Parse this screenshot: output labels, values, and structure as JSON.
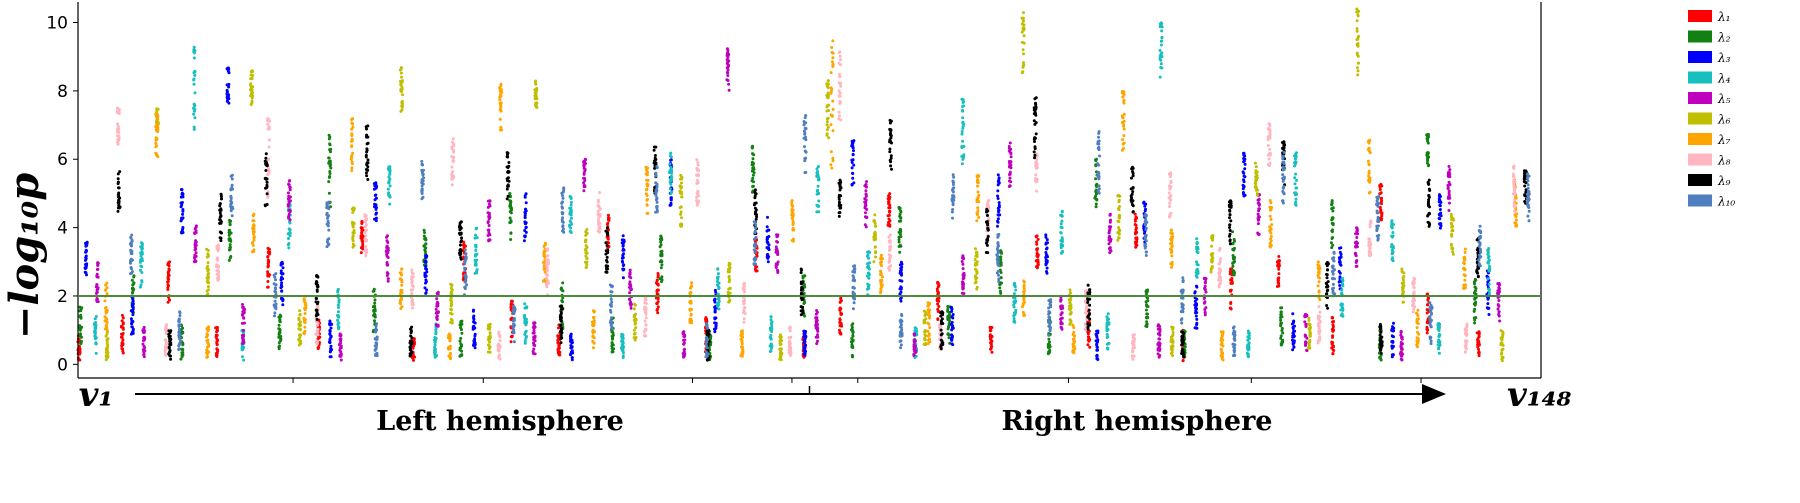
{
  "chart_data": {
    "type": "scatter",
    "ylabel": "−log₁₀p",
    "ylim": [
      -0.4,
      10.6
    ],
    "yticks": [
      "0",
      "2",
      "4",
      "6",
      "8",
      "10"
    ],
    "threshold": 2,
    "threshold_color": "#4c8a3c",
    "grid": false,
    "legend_position": "top-right",
    "x_start_label": "v₁",
    "x_end_label": "v₁₄₈",
    "region_labels": [
      "Left hemisphere",
      "Right hemisphere"
    ],
    "region_divider_index": 74,
    "n_features": 148,
    "series": [
      {
        "name": "λ₁",
        "color": "#ff0000",
        "ranges": [
          [
            0.1,
            0.9
          ],
          [
            0.3,
            1.5
          ],
          [
            1.8,
            3.0
          ],
          [
            0.2,
            1.1
          ],
          [
            2.2,
            3.4
          ],
          [
            0.4,
            1.3
          ],
          [
            3.0,
            4.2
          ],
          [
            0.1,
            0.8
          ],
          [
            2.4,
            3.6
          ],
          [
            0.6,
            1.9
          ],
          [
            0.2,
            1.2
          ],
          [
            3.2,
            4.4
          ],
          [
            1.5,
            2.7
          ],
          [
            0.3,
            1.4
          ],
          [
            2.6,
            3.7
          ],
          [
            0.2,
            0.9
          ],
          [
            0.8,
            2.0
          ],
          [
            4.0,
            5.0
          ],
          [
            1.2,
            2.4
          ],
          [
            0.2,
            1.1
          ],
          [
            2.8,
            3.8
          ],
          [
            0.5,
            1.6
          ],
          [
            3.4,
            4.5
          ],
          [
            0.1,
            1.0
          ],
          [
            1.6,
            2.8
          ],
          [
            2.2,
            3.2
          ],
          [
            0.3,
            1.4
          ],
          [
            4.2,
            5.3
          ],
          [
            0.9,
            2.1
          ],
          [
            0.2,
            1.0
          ]
        ]
      },
      {
        "name": "λ₂",
        "color": "#138013",
        "ranges": [
          [
            0.6,
            1.7
          ],
          [
            1.5,
            2.8
          ],
          [
            0.1,
            1.2
          ],
          [
            3.0,
            4.3
          ],
          [
            0.4,
            1.5
          ],
          [
            4.5,
            6.8
          ],
          [
            0.8,
            2.2
          ],
          [
            2.8,
            4.0
          ],
          [
            0.2,
            1.3
          ],
          [
            3.6,
            5.0
          ],
          [
            0.9,
            2.4
          ],
          [
            0.3,
            1.4
          ],
          [
            2.4,
            3.8
          ],
          [
            0.1,
            1.0
          ],
          [
            5.0,
            6.4
          ],
          [
            1.4,
            2.6
          ],
          [
            0.2,
            1.2
          ],
          [
            3.2,
            4.6
          ],
          [
            0.6,
            1.8
          ],
          [
            2.0,
            3.4
          ],
          [
            0.3,
            1.3
          ],
          [
            4.6,
            6.0
          ],
          [
            1.0,
            2.2
          ],
          [
            0.2,
            1.0
          ],
          [
            2.6,
            3.9
          ],
          [
            0.5,
            1.7
          ],
          [
            3.4,
            4.8
          ],
          [
            0.1,
            1.1
          ],
          [
            5.6,
            6.8
          ],
          [
            1.2,
            2.5
          ]
        ]
      },
      {
        "name": "λ₃",
        "color": "#0000ff",
        "ranges": [
          [
            2.4,
            3.6
          ],
          [
            0.8,
            2.0
          ],
          [
            3.8,
            5.2
          ],
          [
            7.6,
            8.7
          ],
          [
            1.6,
            3.0
          ],
          [
            0.2,
            1.3
          ],
          [
            4.0,
            5.4
          ],
          [
            2.0,
            3.2
          ],
          [
            0.4,
            1.6
          ],
          [
            3.6,
            5.0
          ],
          [
            0.1,
            0.9
          ],
          [
            2.4,
            3.8
          ],
          [
            4.6,
            6.0
          ],
          [
            0.9,
            2.2
          ],
          [
            3.0,
            4.4
          ],
          [
            0.2,
            1.1
          ],
          [
            5.2,
            6.6
          ],
          [
            1.8,
            3.0
          ],
          [
            0.5,
            1.7
          ],
          [
            4.0,
            5.6
          ],
          [
            2.6,
            3.9
          ],
          [
            0.1,
            1.0
          ],
          [
            3.4,
            4.8
          ],
          [
            1.0,
            2.3
          ],
          [
            4.8,
            6.2
          ],
          [
            0.4,
            1.5
          ],
          [
            2.2,
            3.5
          ],
          [
            0.2,
            1.2
          ],
          [
            3.8,
            5.0
          ],
          [
            1.4,
            2.8
          ]
        ]
      },
      {
        "name": "λ₄",
        "color": "#17bfbf",
        "ranges": [
          [
            0.3,
            1.4
          ],
          [
            2.2,
            3.6
          ],
          [
            6.8,
            9.3
          ],
          [
            0.1,
            1.0
          ],
          [
            3.4,
            4.8
          ],
          [
            1.0,
            2.2
          ],
          [
            4.6,
            5.8
          ],
          [
            0.2,
            1.2
          ],
          [
            2.6,
            4.0
          ],
          [
            0.6,
            1.8
          ],
          [
            3.8,
            5.2
          ],
          [
            0.1,
            0.9
          ],
          [
            5.0,
            6.2
          ],
          [
            1.6,
            2.8
          ],
          [
            0.3,
            1.4
          ],
          [
            4.4,
            5.8
          ],
          [
            2.0,
            3.3
          ],
          [
            0.2,
            1.1
          ],
          [
            5.8,
            7.8
          ],
          [
            1.2,
            2.4
          ],
          [
            3.2,
            4.6
          ],
          [
            0.4,
            1.6
          ],
          [
            8.4,
            10.0
          ],
          [
            2.4,
            3.7
          ],
          [
            0.1,
            1.0
          ],
          [
            4.6,
            6.2
          ],
          [
            1.4,
            2.6
          ],
          [
            3.0,
            4.2
          ],
          [
            0.3,
            1.2
          ],
          [
            2.0,
            3.4
          ]
        ]
      },
      {
        "name": "λ₅",
        "color": "#bf00bf",
        "ranges": [
          [
            1.8,
            3.0
          ],
          [
            0.2,
            1.1
          ],
          [
            3.0,
            4.2
          ],
          [
            0.6,
            1.8
          ],
          [
            4.2,
            5.4
          ],
          [
            0.1,
            0.9
          ],
          [
            2.4,
            3.8
          ],
          [
            1.0,
            2.2
          ],
          [
            3.6,
            4.8
          ],
          [
            0.3,
            1.3
          ],
          [
            5.0,
            6.0
          ],
          [
            1.6,
            2.8
          ],
          [
            0.2,
            1.0
          ],
          [
            7.8,
            9.3
          ],
          [
            2.6,
            3.8
          ],
          [
            0.5,
            1.6
          ],
          [
            4.0,
            5.4
          ],
          [
            0.1,
            0.9
          ],
          [
            2.0,
            3.2
          ],
          [
            5.2,
            6.6
          ],
          [
            0.8,
            2.0
          ],
          [
            3.2,
            4.4
          ],
          [
            0.2,
            1.2
          ],
          [
            1.4,
            2.6
          ],
          [
            3.8,
            5.0
          ],
          [
            0.4,
            1.5
          ],
          [
            2.8,
            4.0
          ],
          [
            0.1,
            1.0
          ],
          [
            4.4,
            5.8
          ],
          [
            1.2,
            2.4
          ]
        ]
      },
      {
        "name": "λ₆",
        "color": "#bfbf00",
        "ranges": [
          [
            0.1,
            1.0
          ],
          [
            6.8,
            7.6
          ],
          [
            2.0,
            3.4
          ],
          [
            7.6,
            8.6
          ],
          [
            0.4,
            1.6
          ],
          [
            3.4,
            4.6
          ],
          [
            7.2,
            8.7
          ],
          [
            1.2,
            2.4
          ],
          [
            0.2,
            1.2
          ],
          [
            7.4,
            8.3
          ],
          [
            2.8,
            4.0
          ],
          [
            0.6,
            1.8
          ],
          [
            4.0,
            5.6
          ],
          [
            1.8,
            3.0
          ],
          [
            0.1,
            0.9
          ],
          [
            6.6,
            8.4
          ],
          [
            3.0,
            4.4
          ],
          [
            0.5,
            1.6
          ],
          [
            2.2,
            3.4
          ],
          [
            8.4,
            10.3
          ],
          [
            1.0,
            2.2
          ],
          [
            3.6,
            5.0
          ],
          [
            0.2,
            1.1
          ],
          [
            2.6,
            3.8
          ],
          [
            4.8,
            6.0
          ],
          [
            0.4,
            1.4
          ],
          [
            8.4,
            10.4
          ],
          [
            1.6,
            2.8
          ],
          [
            3.2,
            4.4
          ],
          [
            0.1,
            1.0
          ]
        ]
      },
      {
        "name": "λ₇",
        "color": "#ffa500",
        "ranges": [
          [
            1.0,
            2.4
          ],
          [
            6.0,
            7.4
          ],
          [
            0.2,
            1.1
          ],
          [
            3.2,
            4.4
          ],
          [
            0.8,
            2.0
          ],
          [
            5.6,
            7.2
          ],
          [
            1.6,
            2.8
          ],
          [
            0.1,
            0.9
          ],
          [
            6.8,
            8.2
          ],
          [
            2.4,
            3.6
          ],
          [
            0.4,
            1.6
          ],
          [
            4.4,
            5.8
          ],
          [
            1.2,
            2.4
          ],
          [
            0.2,
            1.0
          ],
          [
            3.6,
            4.8
          ],
          [
            5.6,
            9.5
          ],
          [
            2.0,
            3.2
          ],
          [
            0.6,
            1.8
          ],
          [
            4.2,
            5.6
          ],
          [
            1.4,
            2.6
          ],
          [
            0.3,
            1.2
          ],
          [
            6.2,
            8.0
          ],
          [
            2.8,
            4.0
          ],
          [
            0.1,
            1.0
          ],
          [
            3.4,
            4.8
          ],
          [
            1.8,
            3.0
          ],
          [
            5.0,
            6.6
          ],
          [
            0.4,
            1.6
          ],
          [
            2.2,
            3.4
          ],
          [
            4.0,
            5.4
          ]
        ]
      },
      {
        "name": "λ₈",
        "color": "#ffb6c1",
        "ranges": [
          [
            6.4,
            7.5
          ],
          [
            0.2,
            1.2
          ],
          [
            2.4,
            3.6
          ],
          [
            4.8,
            7.2
          ],
          [
            0.6,
            1.8
          ],
          [
            3.0,
            4.4
          ],
          [
            1.6,
            2.8
          ],
          [
            5.2,
            6.6
          ],
          [
            0.1,
            1.0
          ],
          [
            2.0,
            3.4
          ],
          [
            3.8,
            5.2
          ],
          [
            0.8,
            2.0
          ],
          [
            4.6,
            6.0
          ],
          [
            1.2,
            2.4
          ],
          [
            0.2,
            1.1
          ],
          [
            7.0,
            9.5
          ],
          [
            2.6,
            3.8
          ],
          [
            0.4,
            1.5
          ],
          [
            3.4,
            4.8
          ],
          [
            5.0,
            6.2
          ],
          [
            1.0,
            2.2
          ],
          [
            0.1,
            0.9
          ],
          [
            4.2,
            5.6
          ],
          [
            2.2,
            3.4
          ],
          [
            5.8,
            7.1
          ],
          [
            0.6,
            1.7
          ],
          [
            3.0,
            4.2
          ],
          [
            1.4,
            2.6
          ],
          [
            0.3,
            1.2
          ],
          [
            4.4,
            5.8
          ]
        ]
      },
      {
        "name": "λ₉",
        "color": "#000000",
        "ranges": [
          [
            4.4,
            5.7
          ],
          [
            0.1,
            1.0
          ],
          [
            3.6,
            5.0
          ],
          [
            4.6,
            6.3
          ],
          [
            1.2,
            2.6
          ],
          [
            5.4,
            7.0
          ],
          [
            0.2,
            1.1
          ],
          [
            3.0,
            4.4
          ],
          [
            4.8,
            6.2
          ],
          [
            0.6,
            1.8
          ],
          [
            2.6,
            4.0
          ],
          [
            5.0,
            6.4
          ],
          [
            0.1,
            1.0
          ],
          [
            3.8,
            5.2
          ],
          [
            1.4,
            2.8
          ],
          [
            4.2,
            5.4
          ],
          [
            5.6,
            7.2
          ],
          [
            0.4,
            1.6
          ],
          [
            3.2,
            4.6
          ],
          [
            5.8,
            7.9
          ],
          [
            1.0,
            2.4
          ],
          [
            4.4,
            5.8
          ],
          [
            0.2,
            1.0
          ],
          [
            3.4,
            4.8
          ],
          [
            5.2,
            6.6
          ],
          [
            1.6,
            3.0
          ],
          [
            0.3,
            1.2
          ],
          [
            4.0,
            5.4
          ],
          [
            2.4,
            3.8
          ],
          [
            4.6,
            5.8
          ]
        ]
      },
      {
        "name": "λ₁₀",
        "color": "#4f7fbf",
        "ranges": [
          [
            2.6,
            3.8
          ],
          [
            0.4,
            1.6
          ],
          [
            4.2,
            5.6
          ],
          [
            1.4,
            2.8
          ],
          [
            3.4,
            4.8
          ],
          [
            0.2,
            1.2
          ],
          [
            4.8,
            6.2
          ],
          [
            2.0,
            3.4
          ],
          [
            0.6,
            1.8
          ],
          [
            3.8,
            5.2
          ],
          [
            1.0,
            2.4
          ],
          [
            4.4,
            5.8
          ],
          [
            0.2,
            1.2
          ],
          [
            2.8,
            4.2
          ],
          [
            5.6,
            7.4
          ],
          [
            1.6,
            3.0
          ],
          [
            0.4,
            1.5
          ],
          [
            4.2,
            5.6
          ],
          [
            2.4,
            3.8
          ],
          [
            0.8,
            2.0
          ],
          [
            5.0,
            6.9
          ],
          [
            3.0,
            4.4
          ],
          [
            1.2,
            2.6
          ],
          [
            0.2,
            1.1
          ],
          [
            4.6,
            6.2
          ],
          [
            2.0,
            3.4
          ],
          [
            3.6,
            5.0
          ],
          [
            0.5,
            1.8
          ],
          [
            2.8,
            4.2
          ],
          [
            4.0,
            5.6
          ]
        ]
      }
    ]
  }
}
